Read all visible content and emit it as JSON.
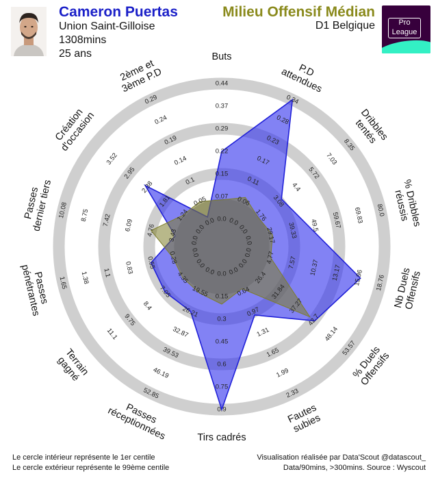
{
  "header": {
    "player_name": "Cameron Puertas",
    "team": "Union Saint-Gilloise",
    "minutes": "1308mins",
    "age": "25 ans",
    "position": "Milieu Offensif Médian",
    "league": "D1 Belgique",
    "logo_line1": "Pro",
    "logo_line2": "League"
  },
  "footer": {
    "left_line1": "Le cercle intérieur représente le 1er centile",
    "left_line2": "Le cercle extérieur représente le 99ème centile",
    "right_line1": "Visualisation réalisée par Data'Scout @datascout_",
    "right_line2": "Data/90mins, >300mins. Source : Wyscout"
  },
  "colors": {
    "player_fill": "#3535ee",
    "player_stroke": "#2020d8",
    "average_fill": "#7d7d2a",
    "ring": "#cfcfcf",
    "center": "#7a7a7a",
    "name": "#1a1fc8",
    "position": "#8a8a1c",
    "logo_bg": "#37003c",
    "logo_swoosh": "#33f0c4"
  },
  "chart_data": {
    "type": "radar",
    "axes": [
      {
        "label": [
          "Buts"
        ],
        "ticks": [
          "0.0",
          "0.07",
          "0.15",
          "0.22",
          "0.29",
          "0.37",
          "0.44"
        ]
      },
      {
        "label": [
          "P.D",
          "attendues"
        ],
        "ticks": [
          "0.0",
          "0.06",
          "0.11",
          "0.17",
          "0.23",
          "0.28",
          "0.34"
        ]
      },
      {
        "label": [
          "Dribbles",
          "tentés"
        ],
        "ticks": [
          "0.0",
          "1.76",
          "3.08",
          "4.4",
          "5.72",
          "7.03",
          "8.35"
        ]
      },
      {
        "label": [
          "% Dribbles",
          "réussis"
        ],
        "ticks": [
          "0.0",
          "29.17",
          "39.33",
          "49.5",
          "59.67",
          "69.83",
          "80.0"
        ]
      },
      {
        "label": [
          "Nb Duels",
          "Offensifs"
        ],
        "ticks": [
          "0.0",
          "4.77",
          "7.57",
          "10.37",
          "13.17",
          "15.96",
          "18.76"
        ]
      },
      {
        "label": [
          "% Duels",
          "Offensifs"
        ],
        "ticks": [
          "0.0",
          "26.4",
          "31.84",
          "37.27",
          "42.7",
          "48.14",
          "53.57"
        ]
      },
      {
        "label": [
          "Fautes",
          "subies"
        ],
        "ticks": [
          "0.0",
          "0.64",
          "0.97",
          "1.31",
          "1.65",
          "1.99",
          "2.33"
        ]
      },
      {
        "label": [
          "Tirs cadrés"
        ],
        "ticks": [
          "0.0",
          "0.15",
          "0.3",
          "0.45",
          "0.6",
          "0.75",
          "0.9"
        ]
      },
      {
        "label": [
          "Passes",
          "réceptionnées"
        ],
        "ticks": [
          "0.0",
          "19.55",
          "26.21",
          "32.87",
          "39.53",
          "46.19",
          "52.85"
        ]
      },
      {
        "label": [
          "Terrain",
          "gagné"
        ],
        "ticks": [
          "0.0",
          "4.35",
          "7.05",
          "8.4",
          "9.75",
          "11.1"
        ]
      },
      {
        "label": [
          "Passes",
          "pénétrantes"
        ],
        "ticks": [
          "0.0",
          "0.28",
          "0.55",
          "0.83",
          "1.1",
          "1.38",
          "1.65"
        ]
      },
      {
        "label": [
          "Passes",
          "dernier tiers"
        ],
        "ticks": [
          "0.0",
          "3.43",
          "4.76",
          "6.09",
          "7.42",
          "8.75",
          "10.08"
        ]
      },
      {
        "label": [
          "Création",
          "d'occasion"
        ],
        "ticks": [
          "0.0",
          "1.24",
          "1.81",
          "2.38",
          "2.95",
          "3.52"
        ]
      },
      {
        "label": [
          "2ème et",
          "3ème P.D"
        ],
        "ticks": [
          "0.0",
          "0.05",
          "0.1",
          "0.14",
          "0.19",
          "0.24",
          "0.29"
        ]
      }
    ],
    "rings": 6,
    "inner_ring_meaning": "1er centile",
    "outer_ring_meaning": "99ème centile",
    "series": [
      {
        "values": [
          0.22,
          0.34,
          3.3,
          47,
          16.2,
          43.0,
          1.02,
          0.9,
          26.0,
          7.05,
          0.55,
          3.1,
          2.45,
          0.012
        ]
      },
      {
        "values": [
          0.06,
          0.07,
          1.5,
          30.2,
          4.8,
          41.5,
          0.55,
          0.2,
          20.0,
          4.35,
          0.28,
          4.76,
          1.24,
          0.05
        ]
      }
    ]
  }
}
